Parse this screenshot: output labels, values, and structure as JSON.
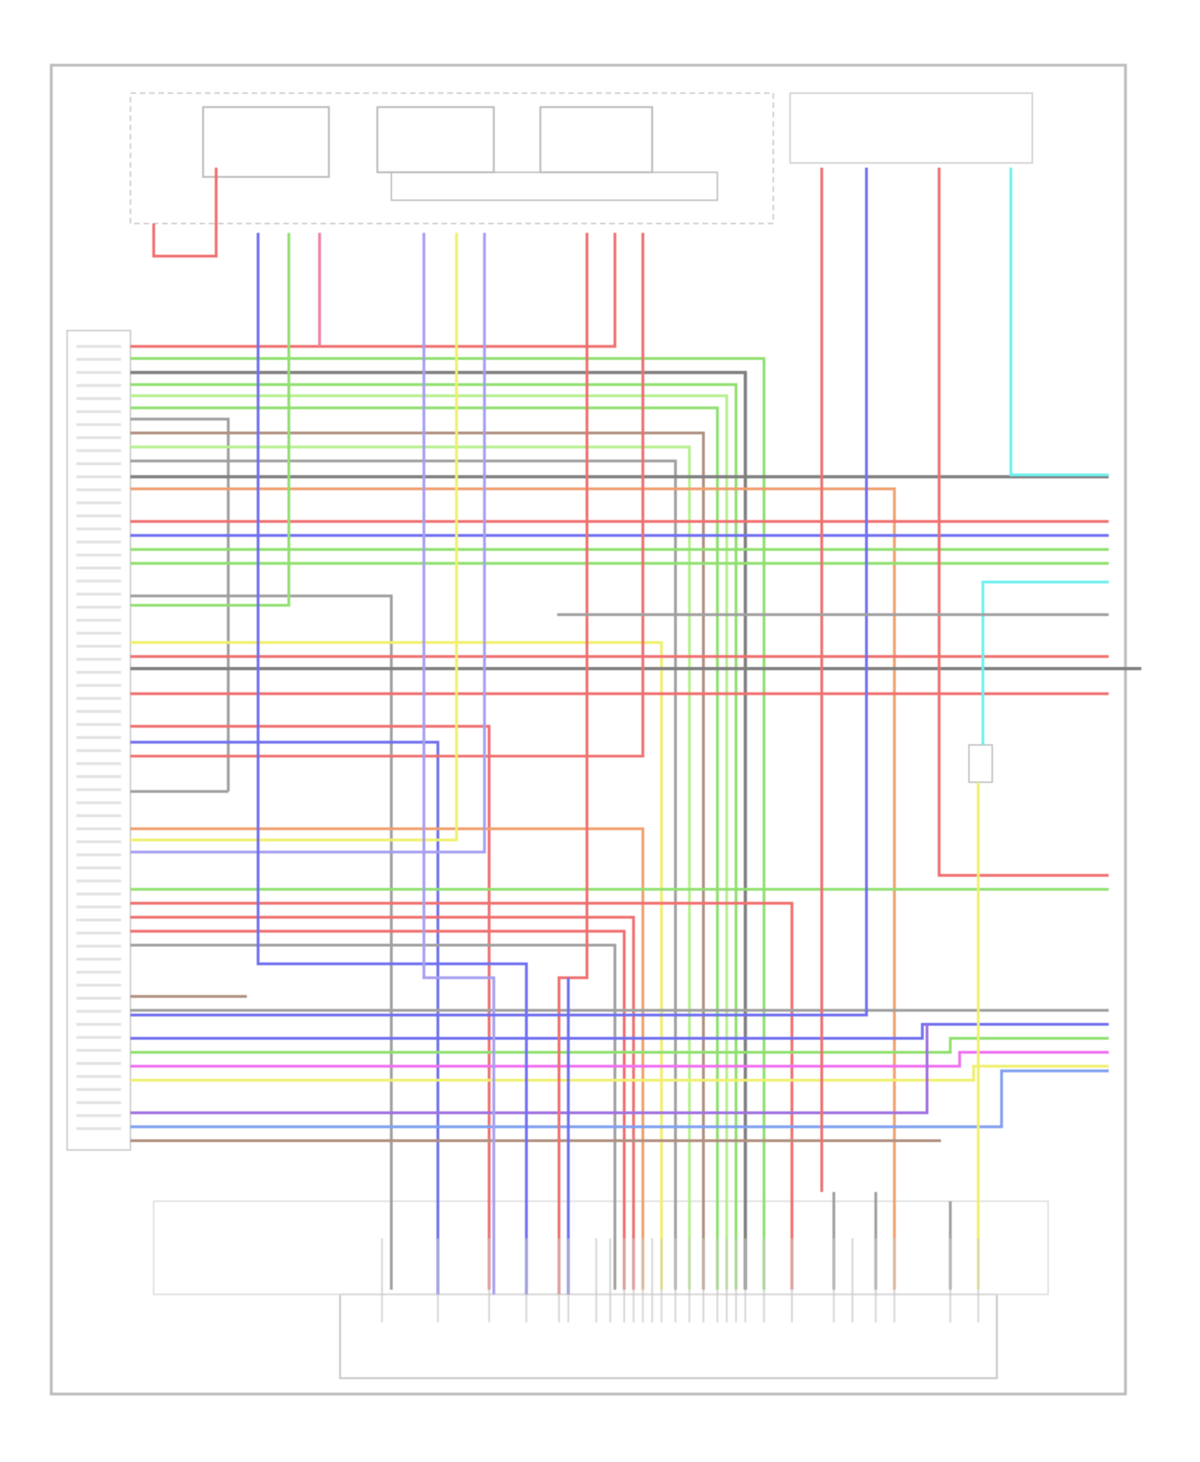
{
  "diagram": {
    "type": "wiring-diagram",
    "text_legible": false,
    "wire_colors": {
      "red": "#f07070",
      "pink": "#f080a0",
      "green": "#90e070",
      "lightgreen": "#b8f090",
      "gray": "#a0a0a0",
      "darkgray": "#808080",
      "brown": "#b09080",
      "orange": "#f0a070",
      "blue": "#7070f0",
      "lavender": "#a8a0f0",
      "yellow": "#f0f070",
      "magenta": "#f070f0",
      "cyan": "#70f0f0",
      "purple": "#a070e0",
      "skyblue": "#80a0f0",
      "frame": "#b0b0b0"
    }
  }
}
